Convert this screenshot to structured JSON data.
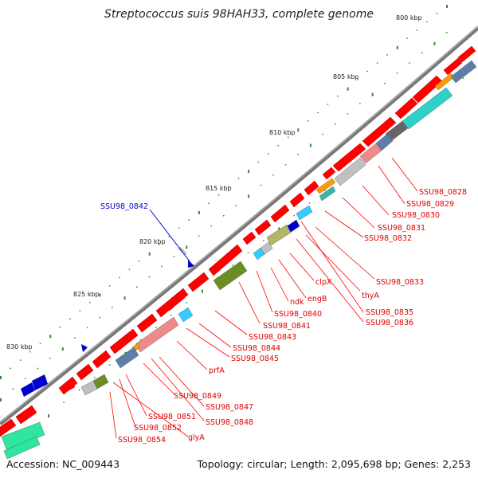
{
  "title": "Streptococcus suis 98HAH33, complete genome",
  "footer": {
    "accession": "Accession: NC_009443",
    "summary": "Topology: circular; Length: 2,095,698 bp; Genes: 2,253"
  },
  "ruler_labels": [
    "800 kbp",
    "805 kbp",
    "810 kbp",
    "815 kbp",
    "820 kbp",
    "825 kbp",
    "830 kbp"
  ],
  "highlight_gene": "SSU98_0842",
  "gene_labels": [
    "SSU98_0828",
    "SSU98_0829",
    "SSU98_0830",
    "SSU98_0831",
    "SSU98_0832",
    "SSU98_0833",
    "thyA",
    "SSU98_0835",
    "SSU98_0836",
    "clpX",
    "engB",
    "ndk",
    "SSU98_0840",
    "SSU98_0841",
    "SSU98_0843",
    "SSU98_0844",
    "SSU98_0845",
    "prfA",
    "SSU98_0847",
    "SSU98_0848",
    "SSU98_0849",
    "SSU98_0851",
    "SSU98_0852",
    "glyA",
    "SSU98_0854"
  ],
  "colors": {
    "backbone": "#7a7a7a",
    "cds": "#ff0000",
    "label": "#dd0000",
    "highlight": "#0000cc",
    "tick": "#2e8b2e"
  }
}
